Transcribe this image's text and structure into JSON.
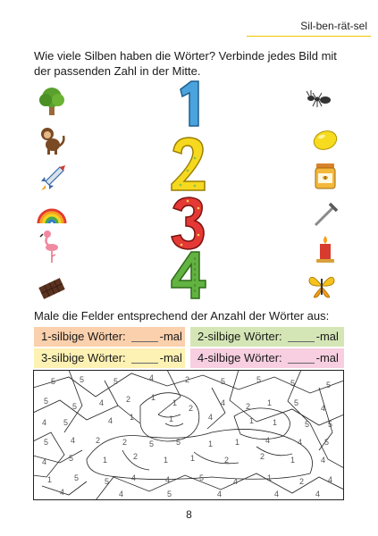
{
  "header": {
    "title": "Sil-ben-rät-sel"
  },
  "task1": {
    "instruction": "Wie viele Silben haben die Wörter? Verbinde jedes Bild mit der passenden Zahl in der Mitte."
  },
  "numbers": [
    "1",
    "2",
    "3",
    "4"
  ],
  "left_icons": [
    "tree-icon",
    "monkey-icon",
    "rocket-icon",
    "rainbow-icon",
    "flamingo-icon",
    "chocolate-icon"
  ],
  "right_icons": [
    "ant-icon",
    "lemon-icon",
    "honey-jar-icon",
    "nail-icon",
    "candle-icon",
    "butterfly-icon"
  ],
  "task2": {
    "instruction": "Male die Felder entsprechend der Anzahl der Wörter aus:",
    "boxes": [
      {
        "label": "1-silbige Wörter:",
        "suffix": "-mal",
        "color": "#fbd0ac"
      },
      {
        "label": "2-silbige Wörter:",
        "suffix": "-mal",
        "color": "#d4e6b5"
      },
      {
        "label": "3-silbige Wörter:",
        "suffix": "-mal",
        "color": "#fdf1b3"
      },
      {
        "label": "4-silbige Wörter:",
        "suffix": "-mal",
        "color": "#f7cfe0"
      }
    ]
  },
  "page_number": "8"
}
